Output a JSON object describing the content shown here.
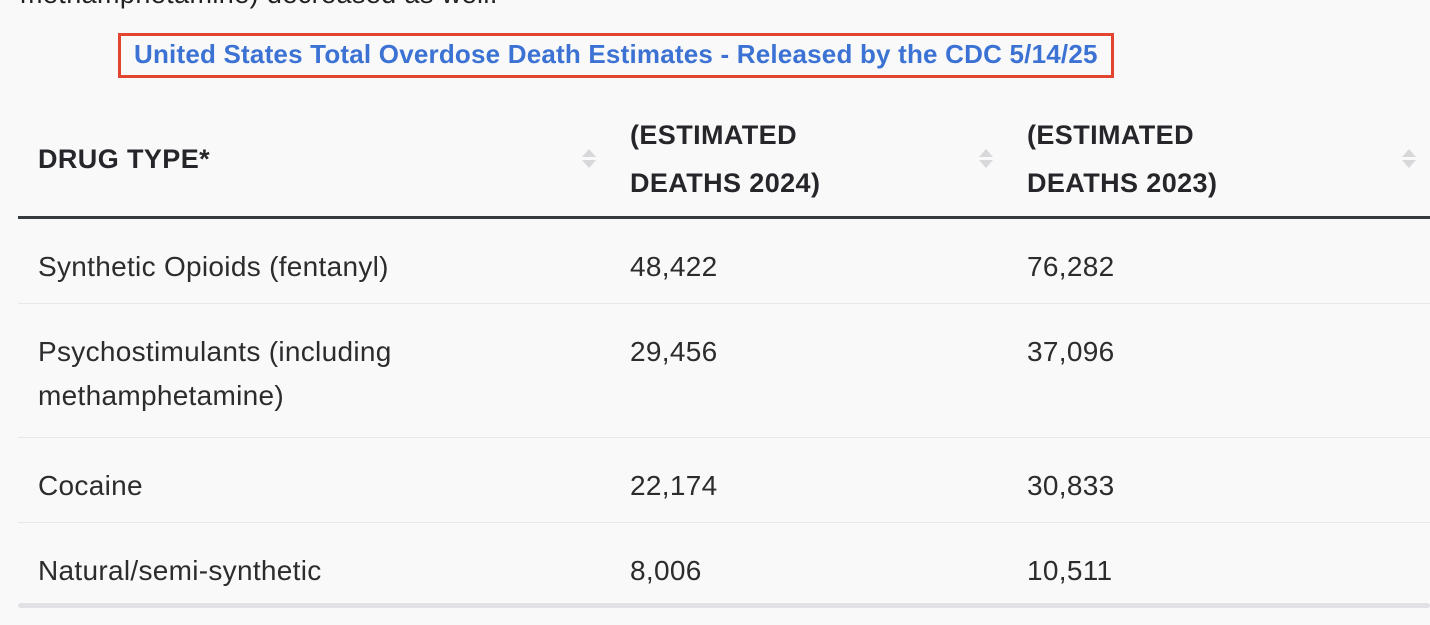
{
  "page": {
    "clipped_text": "methamphetamine) decreased as well.",
    "background_color": "#f9f9f9"
  },
  "title": {
    "text": "United States Total Overdose Death Estimates - Released by the CDC 5/14/25",
    "text_color": "#3b72d3",
    "border_color": "#e2442f"
  },
  "icons": {
    "sort_icon": "up-down-triangles",
    "sort_icon_color": "#d8d8db"
  },
  "table": {
    "columns": [
      {
        "label": "DRUG TYPE*",
        "sortable": true
      },
      {
        "label": "(ESTIMATED DEATHS 2024)",
        "sortable": true
      },
      {
        "label": "(ESTIMATED DEATHS 2023)",
        "sortable": true
      }
    ],
    "rows": [
      {
        "drug_type": "Synthetic Opioids (fentanyl)",
        "deaths_2024": "48,422",
        "deaths_2023": "76,282"
      },
      {
        "drug_type": "Psychostimulants (including methamphetamine)",
        "deaths_2024": "29,456",
        "deaths_2023": "37,096"
      },
      {
        "drug_type": "Cocaine",
        "deaths_2024": "22,174",
        "deaths_2023": "30,833"
      },
      {
        "drug_type": "Natural/semi-synthetic",
        "deaths_2024": "8,006",
        "deaths_2023": "10,511"
      }
    ]
  },
  "chart_data": {
    "type": "table",
    "title": "United States Total Overdose Death Estimates - Released by the CDC 5/14/25",
    "columns": [
      "DRUG TYPE*",
      "(ESTIMATED DEATHS 2024)",
      "(ESTIMATED DEATHS 2023)"
    ],
    "rows": [
      [
        "Synthetic Opioids (fentanyl)",
        48422,
        76282
      ],
      [
        "Psychostimulants (including methamphetamine)",
        29456,
        37096
      ],
      [
        "Cocaine",
        22174,
        30833
      ],
      [
        "Natural/semi-synthetic",
        8006,
        10511
      ]
    ]
  }
}
